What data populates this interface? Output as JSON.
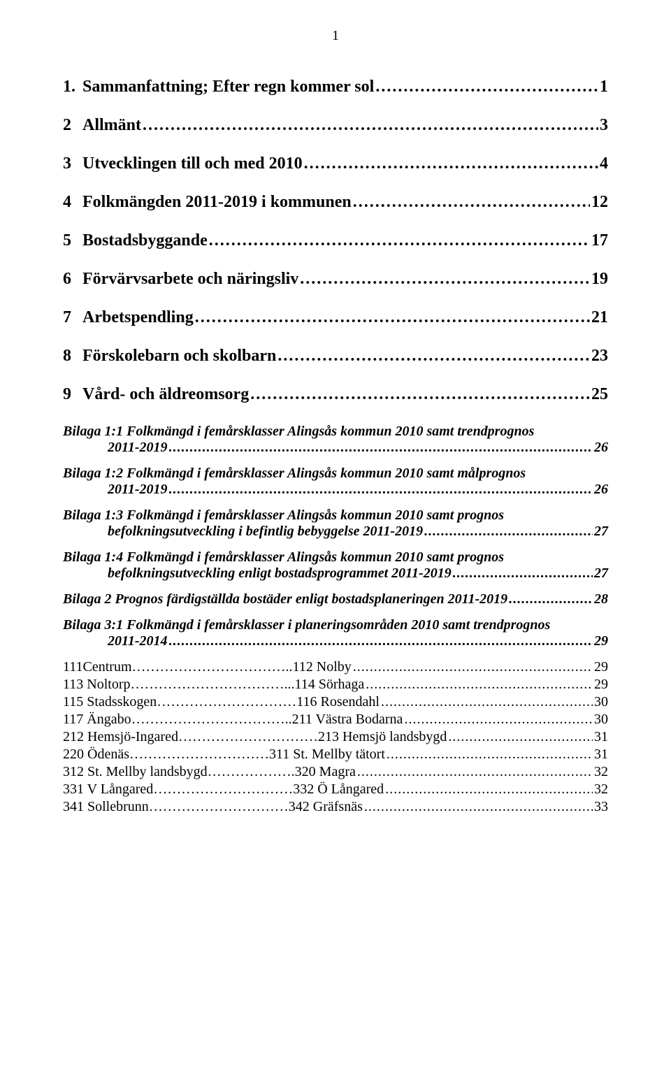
{
  "pageNumber": "1",
  "main": [
    {
      "num": "1.",
      "title": "Sammanfattning; Efter regn kommer sol",
      "page": "1"
    },
    {
      "num": "2",
      "title": "Allmänt",
      "page": "3"
    },
    {
      "num": "3",
      "title": "Utvecklingen till och med 2010",
      "page": "4"
    },
    {
      "num": "4",
      "title": "Folkmängden 2011-2019 i kommunen",
      "page": "12"
    },
    {
      "num": "5",
      "title": "Bostadsbyggande",
      "page": "17"
    },
    {
      "num": "6",
      "title": "Förvärvsarbete och näringsliv",
      "page": "19"
    },
    {
      "num": "7",
      "title": "Arbetspendling",
      "page": "21"
    },
    {
      "num": "8",
      "title": "Förskolebarn och skolbarn",
      "page": "23"
    },
    {
      "num": "9",
      "title": "Vård- och äldreomsorg",
      "page": "25"
    }
  ],
  "bilaga": [
    {
      "l1": "Bilaga 1:1 Folkmängd i femårsklasser Alingsås kommun 2010 samt trendprognos",
      "l2": "2011-2019",
      "page": "26"
    },
    {
      "l1": "Bilaga 1:2 Folkmängd i femårsklasser Alingsås kommun 2010 samt målprognos",
      "l2": "2011-2019",
      "page": "26"
    },
    {
      "l1": "Bilaga 1:3 Folkmängd i femårsklasser Alingsås kommun 2010 samt prognos",
      "l2": "befolkningsutveckling i befintlig bebyggelse 2011-2019",
      "page": "27"
    },
    {
      "l1": "Bilaga 1:4 Folkmängd i femårsklasser Alingsås kommun 2010 samt prognos",
      "l2": "befolkningsutveckling enligt bostadsprogrammet 2011-2019",
      "page": "27"
    },
    {
      "l1": "Bilaga 2 Prognos färdigställda bostäder enligt bostadsplaneringen 2011-2019",
      "page": "28"
    },
    {
      "l1": "Bilaga 3:1 Folkmängd i femårsklasser i planeringsområden 2010 samt trendprognos",
      "l2": "2011-2014",
      "page": "29"
    }
  ],
  "sub": [
    {
      "left": "111Centrum",
      "mid": " 112 Nolby",
      "page": "29",
      "fillStyle": "dots"
    },
    {
      "left": "113 Noltorp",
      "mid": " 114 Sörhaga",
      "page": "29",
      "fillStyle": "dots2"
    },
    {
      "left": "115 Stadsskogen",
      "mid": "116 Rosendahl",
      "page": "30",
      "fillStyle": "plain"
    },
    {
      "left": "117 Ängabo",
      "mid": " 211 Västra Bodarna",
      "page": "30",
      "fillStyle": "dots"
    },
    {
      "left": "212 Hemsjö-Ingared",
      "mid": " 213 Hemsjö landsbygd",
      "page": "31",
      "fillStyle": "plain"
    },
    {
      "left": "220 Ödenäs",
      "mid": "311 St. Mellby tätort",
      "page": "31",
      "fillStyle": "plain"
    },
    {
      "left": "312 St. Mellby landsbygd",
      "mid": " 320 Magra",
      "page": "32",
      "fillStyle": "plain2"
    },
    {
      "left": "331 V Långared",
      "mid": " 332 Ö Långared",
      "page": "32",
      "fillStyle": "plain"
    },
    {
      "left": "341 Sollebrunn",
      "mid": " 342 Gräfsnäs",
      "page": "33",
      "fillStyle": "plain"
    }
  ]
}
